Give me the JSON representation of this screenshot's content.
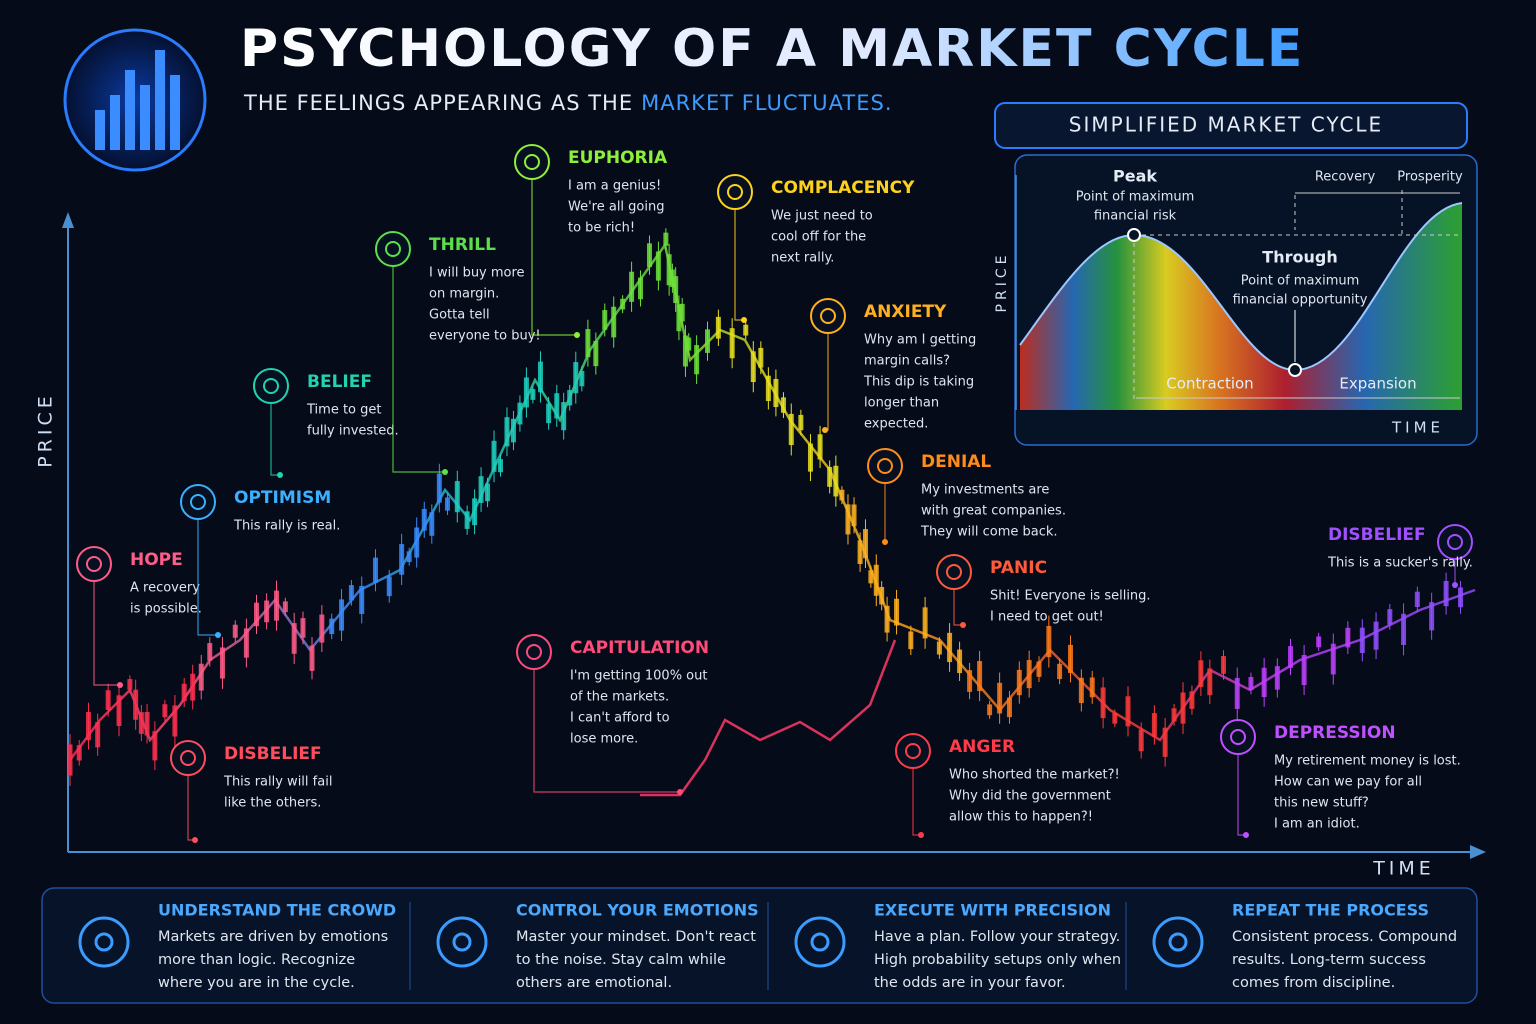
{
  "header": {
    "title": "PSYCHOLOGY OF A MARKET CYCLE",
    "subtitle": "THE FEELINGS APPEARING AS THE",
    "subtitle_highlight": "MARKET FLUCTUATES."
  },
  "main_chart": {
    "y_label": "PRICE",
    "x_label": "TIME",
    "emotions": [
      {
        "title": "HOPE",
        "lines": [
          "A recovery",
          "is possible."
        ]
      },
      {
        "title": "DISBELIEF",
        "lines": [
          "This rally will fail",
          "like the others."
        ]
      },
      {
        "title": "OPTIMISM",
        "lines": [
          "This rally is real."
        ]
      },
      {
        "title": "BELIEF",
        "lines": [
          "Time to get",
          "fully invested."
        ]
      },
      {
        "title": "THRILL",
        "lines": [
          "I will buy more",
          "on margin.",
          "Gotta tell",
          "everyone to buy!"
        ]
      },
      {
        "title": "EUPHORIA",
        "lines": [
          "I am a genius!",
          "We're all going",
          "to be rich!"
        ]
      },
      {
        "title": "COMPLACENCY",
        "lines": [
          "We just need to",
          "cool off for the",
          "next rally."
        ]
      },
      {
        "title": "ANXIETY",
        "lines": [
          "Why am I getting",
          "margin calls?",
          "This dip is taking",
          "longer than",
          "expected."
        ]
      },
      {
        "title": "DENIAL",
        "lines": [
          "My investments are",
          "with great companies.",
          "They will come back."
        ]
      },
      {
        "title": "PANIC",
        "lines": [
          "Shit! Everyone is selling.",
          "I need to get out!"
        ]
      },
      {
        "title": "CAPITULATION",
        "lines": [
          "I'm getting 100% out",
          "of the markets.",
          "I can't afford to",
          "lose more."
        ]
      },
      {
        "title": "ANGER",
        "lines": [
          "Who shorted the market?!",
          "Why did the government",
          "allow this to happen?!"
        ]
      },
      {
        "title": "DEPRESSION",
        "lines": [
          "My retirement money is lost.",
          "How can we pay for all",
          "this new stuff?",
          "I am an idiot."
        ]
      },
      {
        "title": "DISBELIEF",
        "lines": [
          "This is a sucker's rally."
        ]
      }
    ]
  },
  "inset": {
    "title": "SIMPLIFIED MARKET CYCLE",
    "y_label": "PRICE",
    "x_label": "TIME",
    "peak": {
      "label": "Peak",
      "lines": [
        "Point of maximum",
        "financial risk"
      ]
    },
    "through": {
      "label": "Through",
      "lines": [
        "Point of maximum",
        "financial opportunity"
      ]
    },
    "phases": [
      "Recovery",
      "Prosperity",
      "Contraction",
      "Expansion"
    ]
  },
  "footer": [
    {
      "title": "UNDERSTAND THE CROWD",
      "lines": [
        "Markets are driven by emotions",
        "more than logic. Recognize",
        "where you are in the cycle."
      ]
    },
    {
      "title": "CONTROL YOUR EMOTIONS",
      "lines": [
        "Master your mindset. Don't react",
        "to the noise. Stay calm while",
        "others are emotional."
      ]
    },
    {
      "title": "EXECUTE WITH PRECISION",
      "lines": [
        "Have a plan. Follow your strategy.",
        "High probability setups only when",
        "the odds are in your favor."
      ]
    },
    {
      "title": "REPEAT THE PROCESS",
      "lines": [
        "Consistent process. Compound",
        "results. Long-term success",
        "comes from discipline."
      ]
    }
  ]
}
